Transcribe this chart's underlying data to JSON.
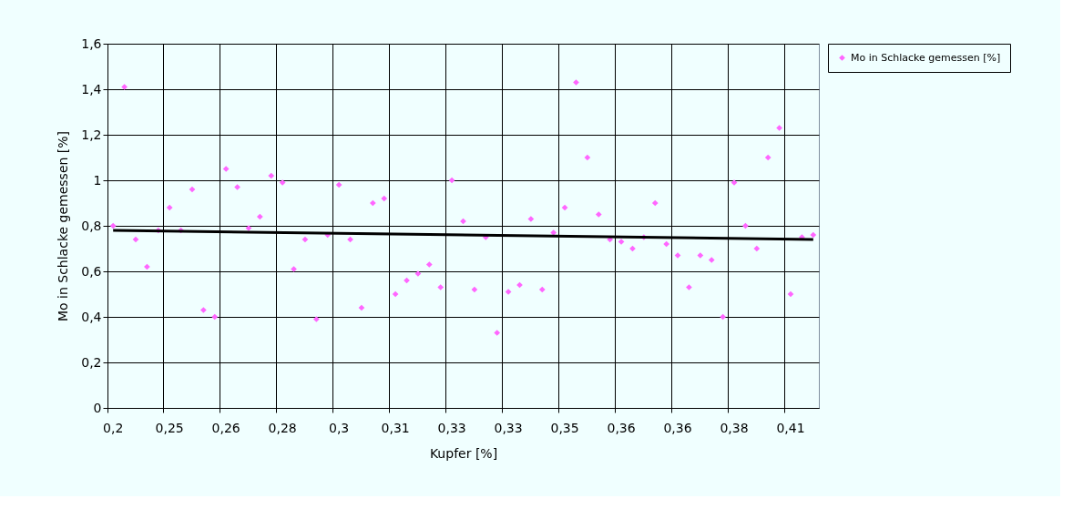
{
  "chart_data": {
    "type": "scatter",
    "xlabel": "Kupfer [%]",
    "ylabel": "Mo in Schlacke gemessen [%]",
    "categories": [
      "0,2",
      null,
      null,
      null,
      null,
      "0,25",
      null,
      null,
      null,
      null,
      "0,26",
      null,
      null,
      null,
      null,
      "0,28",
      null,
      null,
      null,
      null,
      "0,3",
      null,
      null,
      null,
      null,
      "0,31",
      null,
      null,
      null,
      null,
      "0,33",
      null,
      null,
      null,
      null,
      "0,33",
      null,
      null,
      null,
      null,
      "0,35",
      null,
      null,
      null,
      null,
      "0,36",
      null,
      null,
      null,
      null,
      "0,36",
      null,
      null,
      null,
      null,
      "0,38",
      null,
      null,
      null,
      null,
      "0,41",
      null,
      null
    ],
    "series": [
      {
        "name": "Mo in Schlacke gemessen [%]",
        "color": "#ff66ff",
        "marker": "diamond",
        "values": [
          0.8,
          1.41,
          0.74,
          0.62,
          0.78,
          0.88,
          0.78,
          0.96,
          0.43,
          0.4,
          1.05,
          0.97,
          0.79,
          0.84,
          1.02,
          0.99,
          0.61,
          0.74,
          0.39,
          0.76,
          0.98,
          0.74,
          0.44,
          0.9,
          0.92,
          0.5,
          0.56,
          0.59,
          0.63,
          0.53,
          1.0,
          0.82,
          0.52,
          0.75,
          0.33,
          0.51,
          0.54,
          0.83,
          0.52,
          0.77,
          0.88,
          1.43,
          1.1,
          0.85,
          0.74,
          0.73,
          0.7,
          0.75,
          0.9,
          0.72,
          0.67,
          0.53,
          0.67,
          0.65,
          0.4,
          0.99,
          0.8,
          0.7,
          1.1,
          1.23,
          0.5,
          0.75,
          0.76
        ]
      },
      {
        "type": "line",
        "color": "#000000",
        "values": [
          0.78,
          null,
          null,
          null,
          null,
          null,
          null,
          null,
          null,
          null,
          null,
          null,
          null,
          null,
          null,
          null,
          null,
          null,
          null,
          null,
          null,
          null,
          null,
          null,
          null,
          null,
          null,
          null,
          null,
          null,
          null,
          null,
          null,
          null,
          null,
          null,
          null,
          null,
          null,
          null,
          null,
          null,
          null,
          null,
          null,
          null,
          null,
          null,
          null,
          null,
          null,
          null,
          null,
          null,
          null,
          null,
          null,
          null,
          null,
          null,
          null,
          null,
          0.74
        ]
      }
    ],
    "ylim": [
      0,
      1.6
    ],
    "yticks": [
      0,
      {
        "value": 0.2,
        "label": "0,2"
      },
      {
        "value": 0.4,
        "label": "0,4"
      },
      {
        "value": 0.6,
        "label": "0,6"
      },
      {
        "value": 0.8,
        "label": "0,8"
      },
      1,
      {
        "value": 1.2,
        "label": "1,2"
      },
      {
        "value": 1.4,
        "label": "1,4"
      },
      {
        "value": 1.6,
        "label": "1,6"
      }
    ],
    "grid": true,
    "legend": "right"
  }
}
